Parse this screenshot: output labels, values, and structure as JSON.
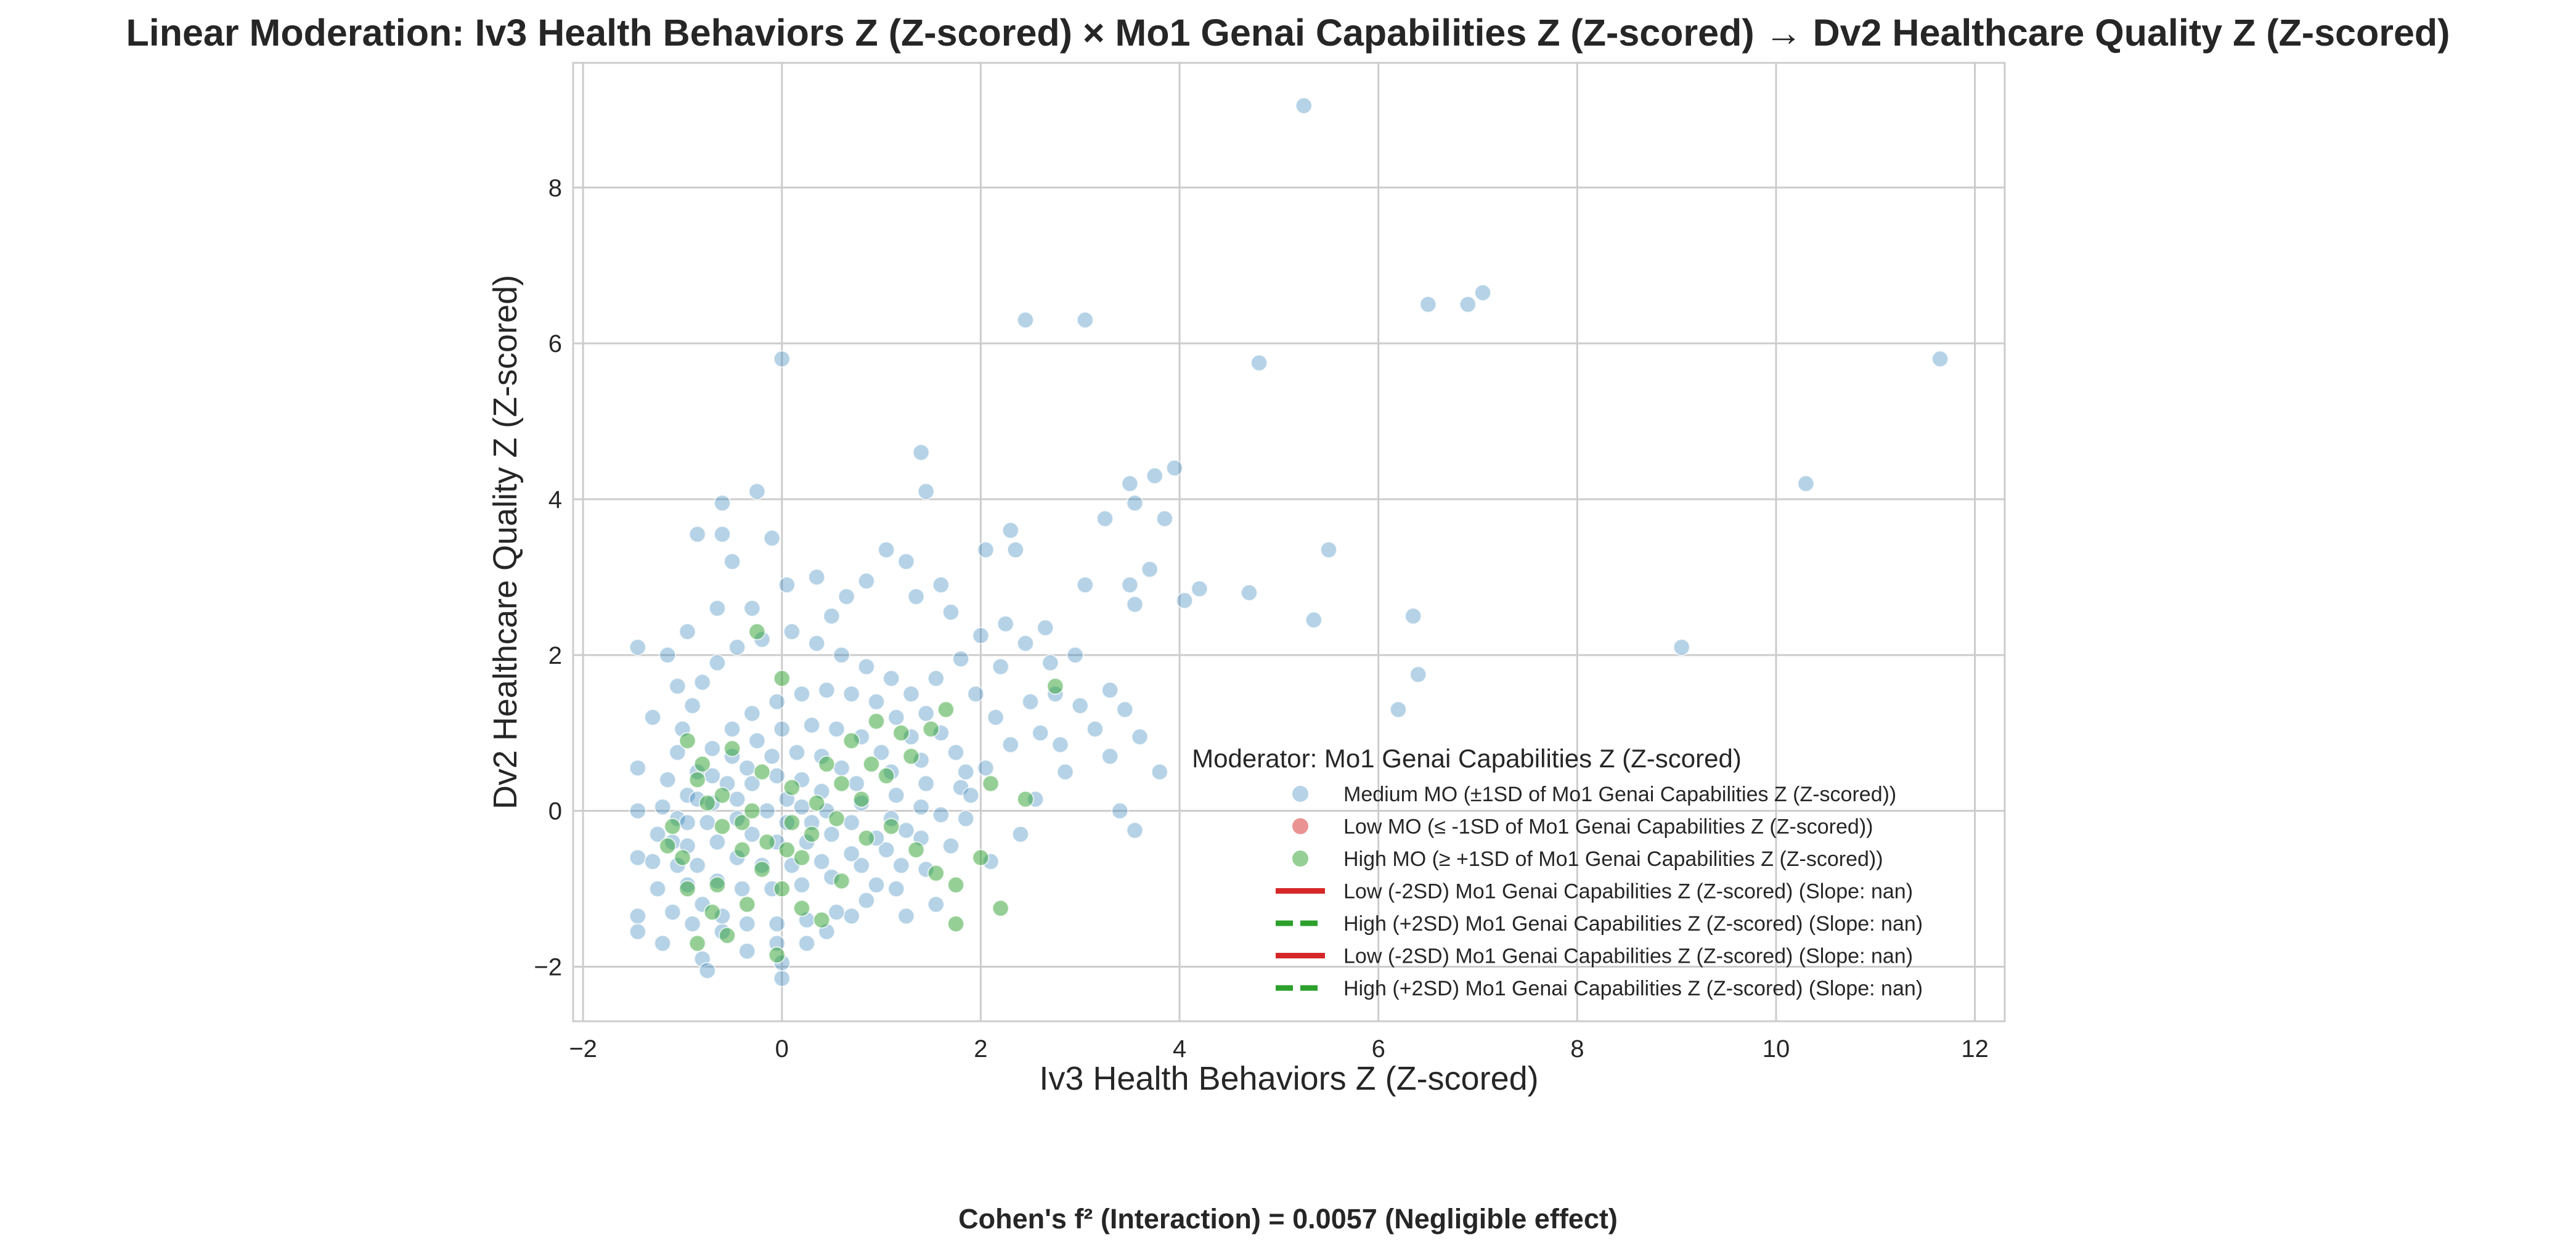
{
  "title": "Linear Moderation: Iv3 Health Behaviors Z (Z-scored) × Mo1 Genai Capabilities Z (Z-scored) → Dv2 Healthcare Quality Z (Z-scored)",
  "footnote": "Cohen's f² (Interaction) = 0.0057 (Negligible effect)",
  "chart_data": {
    "type": "scatter",
    "title": "Linear Moderation: Iv3 Health Behaviors Z (Z-scored) × Mo1 Genai Capabilities Z (Z-scored) → Dv2 Healthcare Quality Z (Z-scored)",
    "xlabel": "Iv3 Health Behaviors Z (Z-scored)",
    "ylabel": "Dv2 Healthcare Quality Z (Z-scored)",
    "xlim": [
      -2.1,
      12.3
    ],
    "ylim": [
      -2.7,
      9.6
    ],
    "xticks": [
      -2,
      0,
      2,
      4,
      6,
      8,
      10,
      12
    ],
    "xtick_labels": [
      "−2",
      "0",
      "2",
      "4",
      "6",
      "8",
      "10",
      "12"
    ],
    "yticks": [
      -2,
      0,
      2,
      4,
      6,
      8
    ],
    "ytick_labels": [
      "−2",
      "0",
      "2",
      "4",
      "6",
      "8"
    ],
    "grid": true,
    "legend": {
      "title": "Moderator: Mo1 Genai Capabilities Z (Z-scored)",
      "placement": "lower-right"
    },
    "series": [
      {
        "name": "Medium MO (±1SD of Mo1 Genai Capabilities Z (Z-scored))",
        "kind": "scatter",
        "color": "#1f77b4",
        "points": [
          [
            5.25,
            9.05
          ],
          [
            2.45,
            6.3
          ],
          [
            3.05,
            6.3
          ],
          [
            6.5,
            6.5
          ],
          [
            6.9,
            6.5
          ],
          [
            7.05,
            6.65
          ],
          [
            11.65,
            5.8
          ],
          [
            0.0,
            5.8
          ],
          [
            4.8,
            5.75
          ],
          [
            1.4,
            4.6
          ],
          [
            1.45,
            4.1
          ],
          [
            3.75,
            4.3
          ],
          [
            3.95,
            4.4
          ],
          [
            3.5,
            4.2
          ],
          [
            3.55,
            3.95
          ],
          [
            10.3,
            4.2
          ],
          [
            3.25,
            3.75
          ],
          [
            3.85,
            3.75
          ],
          [
            2.3,
            3.6
          ],
          [
            2.35,
            3.35
          ],
          [
            5.5,
            3.35
          ],
          [
            2.05,
            3.35
          ],
          [
            -0.25,
            4.1
          ],
          [
            -0.6,
            3.95
          ],
          [
            -0.85,
            3.55
          ],
          [
            -0.6,
            3.55
          ],
          [
            -0.1,
            3.5
          ],
          [
            1.05,
            3.35
          ],
          [
            1.25,
            3.2
          ],
          [
            3.05,
            2.9
          ],
          [
            3.7,
            3.1
          ],
          [
            4.2,
            2.85
          ],
          [
            4.7,
            2.8
          ],
          [
            4.05,
            2.7
          ],
          [
            3.55,
            2.65
          ],
          [
            3.5,
            2.9
          ],
          [
            6.35,
            2.5
          ],
          [
            5.35,
            2.45
          ],
          [
            9.05,
            2.1
          ],
          [
            6.4,
            1.75
          ],
          [
            6.2,
            1.3
          ],
          [
            3.8,
            0.5
          ],
          [
            3.55,
            -0.25
          ],
          [
            3.4,
            0.0
          ],
          [
            3.6,
            0.95
          ],
          [
            3.45,
            1.3
          ],
          [
            2.95,
            2.0
          ],
          [
            3.3,
            1.55
          ],
          [
            3.0,
            1.35
          ],
          [
            2.75,
            1.5
          ],
          [
            2.85,
            0.5
          ],
          [
            2.55,
            0.15
          ],
          [
            2.4,
            -0.3
          ],
          [
            2.1,
            -0.65
          ],
          [
            -1.45,
            2.1
          ],
          [
            -1.45,
            -1.35
          ],
          [
            -1.45,
            -1.55
          ],
          [
            -1.45,
            -0.6
          ],
          [
            -1.45,
            0.0
          ],
          [
            -1.45,
            0.55
          ],
          [
            -1.2,
            -1.7
          ],
          [
            -1.3,
            1.2
          ],
          [
            -0.8,
            -1.9
          ],
          [
            -0.75,
            -2.05
          ],
          [
            0.0,
            -2.15
          ],
          [
            0.0,
            -1.95
          ],
          [
            -0.3,
            2.6
          ],
          [
            0.05,
            2.9
          ],
          [
            0.65,
            2.75
          ],
          [
            0.85,
            2.95
          ],
          [
            1.6,
            2.9
          ],
          [
            2.25,
            2.4
          ],
          [
            2.0,
            2.25
          ],
          [
            1.8,
            1.95
          ],
          [
            1.55,
            1.7
          ],
          [
            1.95,
            1.5
          ],
          [
            2.15,
            1.2
          ],
          [
            2.3,
            0.85
          ],
          [
            2.05,
            0.55
          ],
          [
            1.8,
            0.3
          ],
          [
            1.6,
            -0.05
          ],
          [
            1.4,
            -0.35
          ],
          [
            1.2,
            -0.7
          ],
          [
            0.95,
            -0.95
          ],
          [
            1.25,
            -1.35
          ],
          [
            1.55,
            -1.2
          ],
          [
            0.7,
            -1.35
          ],
          [
            0.45,
            -1.55
          ],
          [
            0.25,
            -1.7
          ],
          [
            -0.05,
            -1.7
          ],
          [
            -0.35,
            -1.8
          ],
          [
            -0.6,
            -1.55
          ],
          [
            -0.9,
            -1.45
          ],
          [
            -1.1,
            -1.3
          ],
          [
            -1.25,
            -1.0
          ],
          [
            -1.3,
            -0.65
          ],
          [
            -1.25,
            -0.3
          ],
          [
            -1.2,
            0.05
          ],
          [
            -1.15,
            0.4
          ],
          [
            -1.05,
            0.75
          ],
          [
            -1.0,
            1.05
          ],
          [
            -0.9,
            1.35
          ],
          [
            -0.8,
            1.65
          ],
          [
            -0.65,
            1.9
          ],
          [
            -0.45,
            2.1
          ],
          [
            -0.2,
            2.2
          ],
          [
            0.1,
            2.3
          ],
          [
            0.35,
            2.15
          ],
          [
            0.6,
            2.0
          ],
          [
            0.85,
            1.85
          ],
          [
            1.1,
            1.7
          ],
          [
            1.3,
            1.5
          ],
          [
            1.45,
            1.25
          ],
          [
            1.6,
            1.0
          ],
          [
            1.75,
            0.75
          ],
          [
            1.85,
            0.5
          ],
          [
            1.9,
            0.2
          ],
          [
            1.85,
            -0.1
          ],
          [
            1.7,
            -0.45
          ],
          [
            1.45,
            -0.75
          ],
          [
            1.15,
            -1.0
          ],
          [
            0.85,
            -1.15
          ],
          [
            0.55,
            -1.3
          ],
          [
            0.25,
            -1.4
          ],
          [
            -0.05,
            -1.45
          ],
          [
            -0.35,
            -1.45
          ],
          [
            -0.6,
            -1.35
          ],
          [
            -0.8,
            -1.2
          ],
          [
            -0.95,
            -0.95
          ],
          [
            -1.05,
            -0.7
          ],
          [
            -1.1,
            -0.4
          ],
          [
            -1.05,
            -0.1
          ],
          [
            -0.95,
            0.2
          ],
          [
            -0.85,
            0.5
          ],
          [
            -0.7,
            0.8
          ],
          [
            -0.5,
            1.05
          ],
          [
            -0.3,
            1.25
          ],
          [
            -0.05,
            1.4
          ],
          [
            0.2,
            1.5
          ],
          [
            0.45,
            1.55
          ],
          [
            0.7,
            1.5
          ],
          [
            0.95,
            1.4
          ],
          [
            1.15,
            1.2
          ],
          [
            1.3,
            0.95
          ],
          [
            1.4,
            0.65
          ],
          [
            1.45,
            0.35
          ],
          [
            1.4,
            0.05
          ],
          [
            1.25,
            -0.25
          ],
          [
            1.05,
            -0.5
          ],
          [
            0.8,
            -0.7
          ],
          [
            0.5,
            -0.85
          ],
          [
            0.2,
            -0.95
          ],
          [
            -0.1,
            -1.0
          ],
          [
            -0.4,
            -1.0
          ],
          [
            -0.65,
            -0.9
          ],
          [
            -0.85,
            -0.7
          ],
          [
            -0.95,
            -0.45
          ],
          [
            -0.95,
            -0.15
          ],
          [
            -0.85,
            0.15
          ],
          [
            -0.7,
            0.45
          ],
          [
            -0.5,
            0.7
          ],
          [
            -0.25,
            0.9
          ],
          [
            0.0,
            1.05
          ],
          [
            0.3,
            1.1
          ],
          [
            0.55,
            1.05
          ],
          [
            0.8,
            0.95
          ],
          [
            1.0,
            0.75
          ],
          [
            1.1,
            0.5
          ],
          [
            1.15,
            0.2
          ],
          [
            1.1,
            -0.1
          ],
          [
            0.95,
            -0.35
          ],
          [
            0.7,
            -0.55
          ],
          [
            0.4,
            -0.65
          ],
          [
            0.1,
            -0.7
          ],
          [
            -0.2,
            -0.7
          ],
          [
            -0.45,
            -0.6
          ],
          [
            -0.65,
            -0.4
          ],
          [
            -0.75,
            -0.15
          ],
          [
            -0.7,
            0.1
          ],
          [
            -0.55,
            0.35
          ],
          [
            -0.35,
            0.55
          ],
          [
            -0.1,
            0.7
          ],
          [
            0.15,
            0.75
          ],
          [
            0.4,
            0.7
          ],
          [
            0.6,
            0.55
          ],
          [
            0.75,
            0.35
          ],
          [
            0.8,
            0.1
          ],
          [
            0.7,
            -0.15
          ],
          [
            0.5,
            -0.3
          ],
          [
            0.25,
            -0.4
          ],
          [
            -0.05,
            -0.4
          ],
          [
            -0.3,
            -0.3
          ],
          [
            -0.45,
            -0.1
          ],
          [
            -0.45,
            0.15
          ],
          [
            -0.3,
            0.35
          ],
          [
            -0.05,
            0.45
          ],
          [
            0.2,
            0.4
          ],
          [
            0.4,
            0.25
          ],
          [
            0.45,
            0.0
          ],
          [
            0.3,
            -0.15
          ],
          [
            0.05,
            -0.15
          ],
          [
            -0.15,
            0.0
          ],
          [
            0.05,
            0.15
          ],
          [
            0.2,
            0.05
          ],
          [
            2.6,
            1.0
          ],
          [
            2.8,
            0.85
          ],
          [
            2.5,
            1.4
          ],
          [
            2.7,
            1.9
          ],
          [
            3.15,
            1.05
          ],
          [
            3.3,
            0.7
          ],
          [
            2.2,
            1.85
          ],
          [
            2.45,
            2.15
          ],
          [
            2.65,
            2.35
          ],
          [
            1.7,
            2.55
          ],
          [
            1.35,
            2.75
          ],
          [
            0.5,
            2.5
          ],
          [
            -0.65,
            2.6
          ],
          [
            -0.95,
            2.3
          ],
          [
            -1.15,
            2.0
          ],
          [
            -1.05,
            1.6
          ],
          [
            -0.5,
            3.2
          ],
          [
            0.35,
            3.0
          ]
        ]
      },
      {
        "name": "Low MO (≤ -1SD of Mo1 Genai Capabilities Z (Z-scored))",
        "kind": "scatter",
        "color": "#d62728",
        "points": []
      },
      {
        "name": "High MO (≥ +1SD of Mo1 Genai Capabilities Z (Z-scored))",
        "kind": "scatter",
        "color": "#2ca02c",
        "points": [
          [
            -0.25,
            2.3
          ],
          [
            0.0,
            1.7
          ],
          [
            -0.85,
            0.4
          ],
          [
            -0.75,
            0.1
          ],
          [
            -0.6,
            -0.2
          ],
          [
            -0.4,
            -0.5
          ],
          [
            -0.2,
            -0.75
          ],
          [
            0.0,
            -1.0
          ],
          [
            0.2,
            -1.25
          ],
          [
            0.4,
            -1.4
          ],
          [
            -0.55,
            -1.6
          ],
          [
            -0.85,
            -1.7
          ],
          [
            -0.05,
            -1.85
          ],
          [
            -1.1,
            -0.2
          ],
          [
            -1.0,
            -0.6
          ],
          [
            -0.95,
            -1.0
          ],
          [
            -0.7,
            -1.3
          ],
          [
            -0.35,
            -1.2
          ],
          [
            0.05,
            -0.5
          ],
          [
            0.3,
            -0.3
          ],
          [
            0.55,
            -0.1
          ],
          [
            0.8,
            0.15
          ],
          [
            1.05,
            0.45
          ],
          [
            1.3,
            0.7
          ],
          [
            1.5,
            1.05
          ],
          [
            1.65,
            1.3
          ],
          [
            1.2,
            1.0
          ],
          [
            0.9,
            0.6
          ],
          [
            0.6,
            0.35
          ],
          [
            0.35,
            0.1
          ],
          [
            0.1,
            -0.15
          ],
          [
            -0.15,
            -0.4
          ],
          [
            -0.4,
            -0.15
          ],
          [
            -0.6,
            0.2
          ],
          [
            -0.8,
            0.6
          ],
          [
            -0.95,
            0.9
          ],
          [
            -0.5,
            0.8
          ],
          [
            -0.2,
            0.5
          ],
          [
            0.1,
            0.3
          ],
          [
            0.45,
            0.6
          ],
          [
            0.7,
            0.9
          ],
          [
            0.95,
            1.15
          ],
          [
            1.35,
            -0.5
          ],
          [
            1.55,
            -0.8
          ],
          [
            1.75,
            -0.95
          ],
          [
            1.75,
            -1.45
          ],
          [
            2.2,
            -1.25
          ],
          [
            2.0,
            -0.6
          ],
          [
            2.1,
            0.35
          ],
          [
            2.45,
            0.15
          ],
          [
            2.75,
            1.6
          ],
          [
            -0.3,
            0.0
          ],
          [
            0.2,
            -0.6
          ],
          [
            0.6,
            -0.9
          ],
          [
            -1.15,
            -0.45
          ],
          [
            -0.65,
            -0.95
          ],
          [
            0.85,
            -0.35
          ],
          [
            1.1,
            -0.2
          ]
        ]
      },
      {
        "name": "Low (-2SD) Mo1 Genai Capabilities Z (Z-scored) (Slope: nan)",
        "kind": "line",
        "color": "#d62728",
        "dash": "solid",
        "points": []
      },
      {
        "name": "High (+2SD) Mo1 Genai Capabilities Z (Z-scored) (Slope: nan)",
        "kind": "line",
        "color": "#2ca02c",
        "dash": "dashed",
        "points": []
      },
      {
        "name": "Low (-2SD) Mo1 Genai Capabilities Z (Z-scored) (Slope: nan)",
        "kind": "line",
        "color": "#d62728",
        "dash": "solid",
        "points": []
      },
      {
        "name": "High (+2SD) Mo1 Genai Capabilities Z (Z-scored) (Slope: nan)",
        "kind": "line",
        "color": "#2ca02c",
        "dash": "dashed",
        "points": []
      }
    ]
  }
}
